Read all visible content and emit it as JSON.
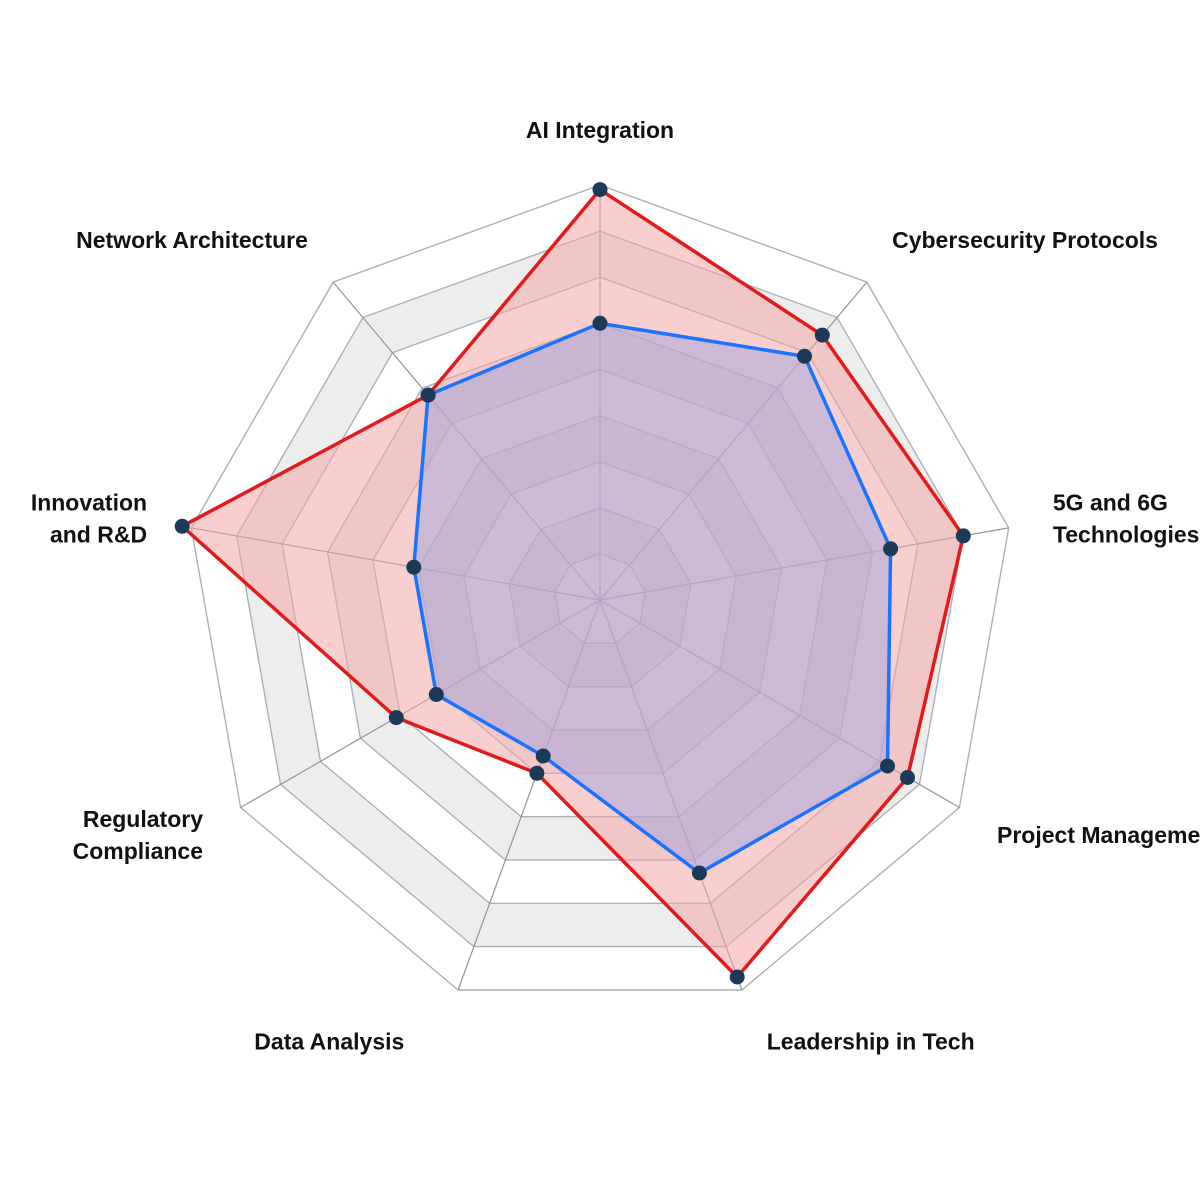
{
  "chart_data": {
    "type": "radar",
    "axes": [
      {
        "label": [
          "AI Integration"
        ]
      },
      {
        "label": [
          "Cybersecurity Protocols"
        ]
      },
      {
        "label": [
          "5G and 6G",
          "Technologies"
        ]
      },
      {
        "label": [
          "Project Management"
        ]
      },
      {
        "label": [
          "Leadership in Tech"
        ]
      },
      {
        "label": [
          "Data Analysis"
        ]
      },
      {
        "label": [
          "Regulatory",
          "Compliance"
        ]
      },
      {
        "label": [
          "Innovation",
          "and R&D"
        ]
      },
      {
        "label": [
          "Network Architecture"
        ]
      }
    ],
    "rlim": [
      0,
      9
    ],
    "levels": 9,
    "grid": true,
    "series": [
      {
        "color": "#e31a1c",
        "fill": "#f4a5a5",
        "values": [
          8.9,
          7.5,
          8.0,
          7.7,
          8.7,
          4.0,
          5.1,
          9.2,
          5.8
        ]
      },
      {
        "color": "#1a73ff",
        "fill": "#a8a8dd",
        "values": [
          6.0,
          6.9,
          6.4,
          7.2,
          6.3,
          3.6,
          4.1,
          4.1,
          5.8
        ]
      }
    ],
    "marker_color": "#1c3a57"
  }
}
